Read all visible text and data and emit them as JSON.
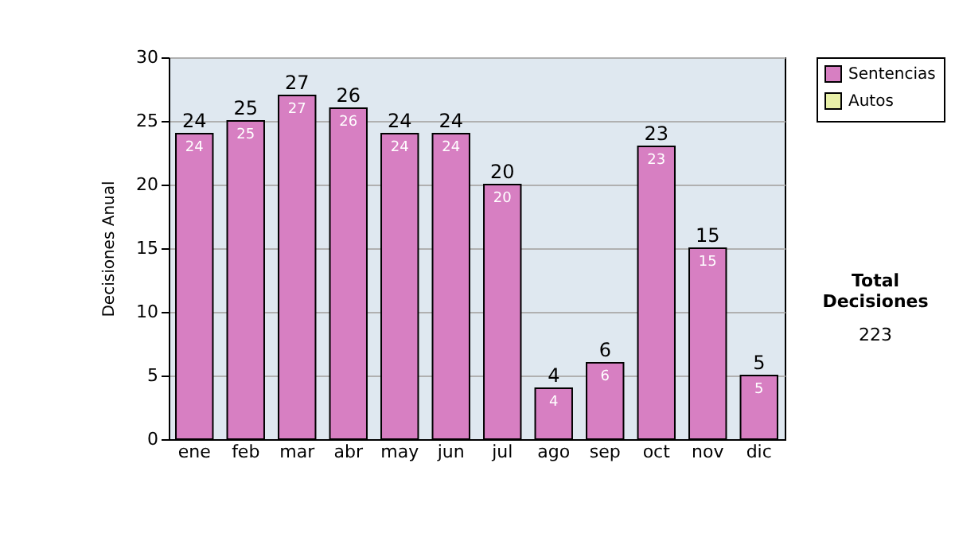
{
  "chart_data": {
    "type": "bar",
    "stacked": true,
    "ylabel": "Decisiones Anual",
    "categories": [
      "ene",
      "feb",
      "mar",
      "abr",
      "may",
      "jun",
      "jul",
      "ago",
      "sep",
      "oct",
      "nov",
      "dic"
    ],
    "series": [
      {
        "name": "Sentencias",
        "color": "#d77fc2",
        "values": [
          24,
          25,
          27,
          26,
          24,
          24,
          20,
          4,
          6,
          23,
          15,
          5
        ],
        "value_labels": [
          "24",
          "25",
          "27",
          "26",
          "24",
          "24",
          "20",
          "4",
          "6",
          "23",
          "15",
          "5"
        ]
      },
      {
        "name": "Autos",
        "color": "#e8f0a8",
        "values": [
          0,
          0,
          0,
          0,
          0,
          0,
          0,
          0,
          0,
          0,
          0,
          0
        ]
      }
    ],
    "totals": [
      "24",
      "25",
      "27",
      "26",
      "24",
      "24",
      "20",
      "4",
      "6",
      "23",
      "15",
      "5"
    ],
    "ylim": [
      0,
      30
    ],
    "yticks": [
      0,
      5,
      10,
      15,
      20,
      25,
      30
    ],
    "grid": "y",
    "legend": "right",
    "annotations": [
      "Total Decisiones",
      "223"
    ]
  }
}
